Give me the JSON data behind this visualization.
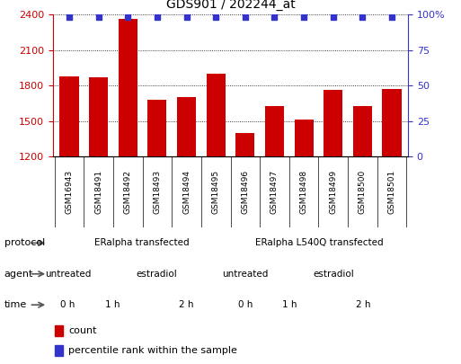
{
  "title": "GDS901 / 202244_at",
  "samples": [
    "GSM16943",
    "GSM18491",
    "GSM18492",
    "GSM18493",
    "GSM18494",
    "GSM18495",
    "GSM18496",
    "GSM18497",
    "GSM18498",
    "GSM18499",
    "GSM18500",
    "GSM18501"
  ],
  "counts": [
    1880,
    1870,
    2360,
    1680,
    1700,
    1900,
    1400,
    1630,
    1510,
    1760,
    1630,
    1770
  ],
  "ylim_left": [
    1200,
    2400
  ],
  "ylim_right": [
    0,
    100
  ],
  "yticks_left": [
    1200,
    1500,
    1800,
    2100,
    2400
  ],
  "yticks_right": [
    0,
    25,
    50,
    75,
    100
  ],
  "bar_color": "#cc0000",
  "percentile_color": "#3333cc",
  "grid_color": "#555555",
  "protocol_groups": [
    {
      "label": "ERalpha transfected",
      "start": 0,
      "end": 6,
      "color": "#aaddaa"
    },
    {
      "label": "ERalpha L540Q transfected",
      "start": 6,
      "end": 12,
      "color": "#44cc44"
    }
  ],
  "agent_groups": [
    {
      "label": "untreated",
      "start": 0,
      "end": 1,
      "color": "#bbbbff"
    },
    {
      "label": "estradiol",
      "start": 1,
      "end": 6,
      "color": "#8888cc"
    },
    {
      "label": "untreated",
      "start": 6,
      "end": 7,
      "color": "#bbbbff"
    },
    {
      "label": "estradiol",
      "start": 7,
      "end": 12,
      "color": "#8888cc"
    }
  ],
  "time_groups": [
    {
      "label": "0 h",
      "start": 0,
      "end": 1,
      "color": "#ffcccc"
    },
    {
      "label": "1 h",
      "start": 1,
      "end": 3,
      "color": "#eeaaaa"
    },
    {
      "label": "2 h",
      "start": 3,
      "end": 6,
      "color": "#dd8888"
    },
    {
      "label": "0 h",
      "start": 6,
      "end": 7,
      "color": "#ffcccc"
    },
    {
      "label": "1 h",
      "start": 7,
      "end": 9,
      "color": "#eeaaaa"
    },
    {
      "label": "2 h",
      "start": 9,
      "end": 12,
      "color": "#dd8888"
    }
  ],
  "row_labels": [
    "protocol",
    "agent",
    "time"
  ],
  "legend_items": [
    {
      "label": "count",
      "color": "#cc0000"
    },
    {
      "label": "percentile rank within the sample",
      "color": "#3333cc"
    }
  ],
  "tick_label_color_left": "#cc0000",
  "tick_label_color_right": "#3333cc",
  "bar_width": 0.65,
  "figsize": [
    5.13,
    4.05
  ],
  "dpi": 100
}
